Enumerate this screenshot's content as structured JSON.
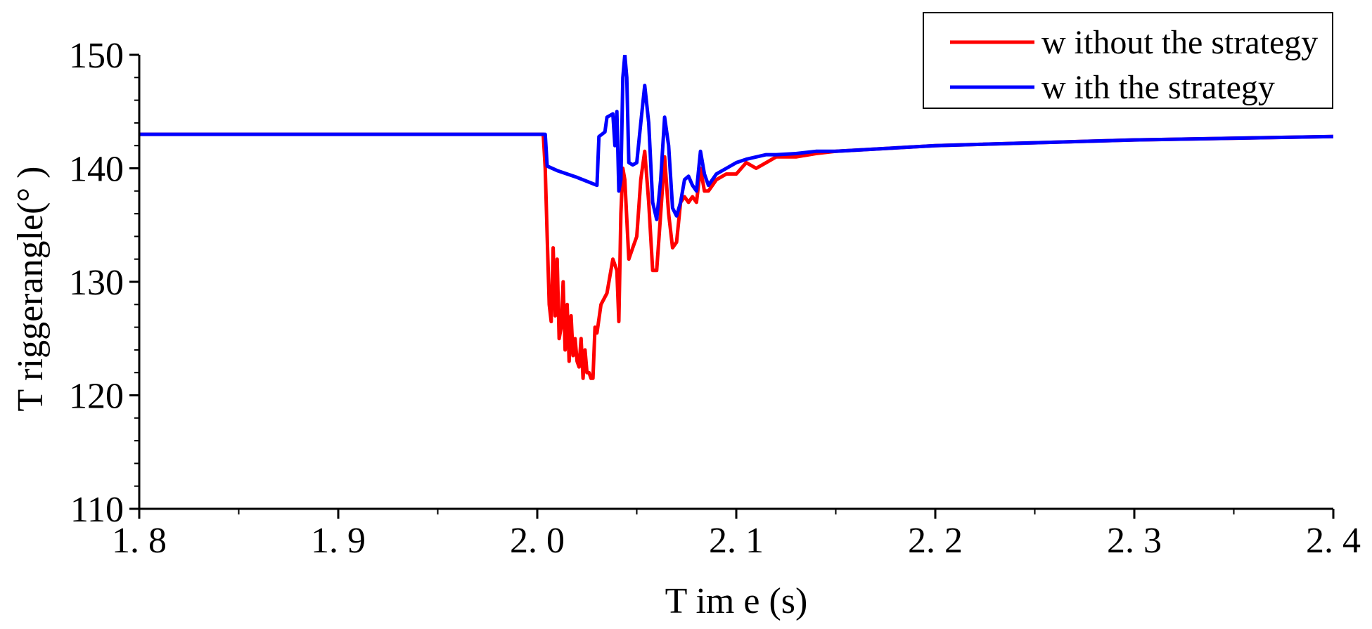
{
  "chart_data": {
    "type": "line",
    "xlabel": "T im e (s)",
    "ylabel": "T riggerangle(°  )",
    "xlim": [
      1.8,
      2.4
    ],
    "ylim": [
      110,
      150
    ],
    "x_ticks": [
      1.8,
      1.9,
      2.0,
      2.1,
      2.2,
      2.3,
      2.4
    ],
    "x_tick_labels": [
      "1. 8",
      "1. 9",
      "2. 0",
      "2. 1",
      "2. 2",
      "2. 3",
      "2. 4"
    ],
    "y_ticks": [
      110,
      120,
      130,
      140,
      150
    ],
    "y_tick_labels": [
      "110",
      "120",
      "130",
      "140",
      "150"
    ],
    "grid": false,
    "legend_position": "top-right",
    "series": [
      {
        "name": "w ithout the strategy",
        "color": "#ff0000",
        "x": [
          1.8,
          2.003,
          2.004,
          2.005,
          2.006,
          2.007,
          2.008,
          2.009,
          2.01,
          2.011,
          2.012,
          2.013,
          2.014,
          2.015,
          2.016,
          2.017,
          2.018,
          2.019,
          2.02,
          2.021,
          2.022,
          2.023,
          2.024,
          2.025,
          2.026,
          2.027,
          2.028,
          2.029,
          2.03,
          2.032,
          2.035,
          2.038,
          2.04,
          2.041,
          2.042,
          2.043,
          2.044,
          2.046,
          2.048,
          2.05,
          2.052,
          2.054,
          2.056,
          2.058,
          2.06,
          2.062,
          2.064,
          2.066,
          2.068,
          2.07,
          2.072,
          2.074,
          2.076,
          2.078,
          2.08,
          2.082,
          2.084,
          2.086,
          2.09,
          2.095,
          2.1,
          2.105,
          2.11,
          2.115,
          2.12,
          2.13,
          2.14,
          2.15,
          2.2,
          2.3,
          2.4
        ],
        "y": [
          143,
          143,
          140.0,
          134,
          128,
          126.5,
          133,
          127,
          132,
          125,
          126,
          130,
          124,
          128,
          123,
          127,
          123.5,
          125,
          123,
          122.5,
          125,
          121.5,
          124,
          122,
          122,
          121.5,
          121.5,
          126,
          125.5,
          128,
          129,
          132,
          131,
          126.5,
          136,
          140,
          139,
          132,
          133,
          134,
          139,
          141.5,
          137,
          131,
          131,
          136,
          141,
          136,
          133,
          133.5,
          137,
          137.5,
          137,
          137.5,
          137,
          140,
          138,
          138,
          139,
          139.5,
          139.5,
          140.5,
          140,
          140.5,
          141,
          141,
          141.3,
          141.5,
          142,
          142.5,
          142.8
        ]
      },
      {
        "name": "w ith the strategy",
        "color": "#0000ff",
        "x": [
          1.8,
          2.004,
          2.005,
          2.01,
          2.02,
          2.03,
          2.031,
          2.034,
          2.035,
          2.038,
          2.039,
          2.04,
          2.041,
          2.042,
          2.043,
          2.044,
          2.045,
          2.046,
          2.048,
          2.05,
          2.052,
          2.054,
          2.056,
          2.058,
          2.06,
          2.062,
          2.064,
          2.066,
          2.068,
          2.07,
          2.072,
          2.074,
          2.076,
          2.078,
          2.08,
          2.082,
          2.084,
          2.086,
          2.09,
          2.095,
          2.1,
          2.105,
          2.11,
          2.115,
          2.12,
          2.13,
          2.14,
          2.15,
          2.2,
          2.3,
          2.4
        ],
        "y": [
          143,
          143,
          140.2,
          139.8,
          139.2,
          138.5,
          142.8,
          143.2,
          144.5,
          144.8,
          142,
          145,
          138,
          139,
          148,
          150,
          148,
          140.5,
          140.3,
          140.5,
          144,
          147.3,
          144,
          137,
          135.5,
          139,
          144.5,
          142,
          136.5,
          135.8,
          137,
          139,
          139.3,
          138.5,
          138,
          141.5,
          139.5,
          138.5,
          139.5,
          140,
          140.5,
          140.8,
          141,
          141.2,
          141.2,
          141.3,
          141.5,
          141.5,
          142,
          142.5,
          142.8
        ]
      }
    ]
  }
}
